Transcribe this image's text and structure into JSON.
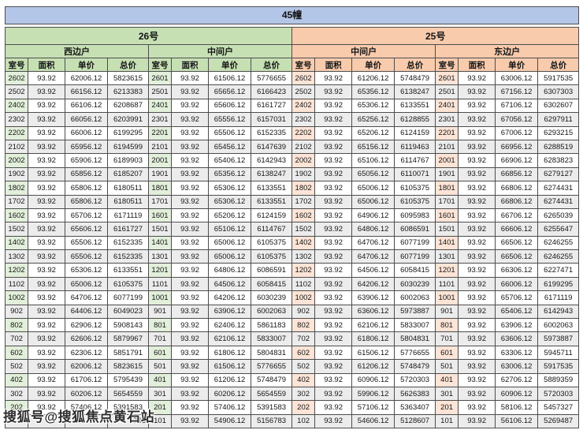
{
  "title": "45幢",
  "watermark": "搜狐号@搜狐焦点黄石站",
  "buildings": [
    {
      "label": "26号"
    },
    {
      "label": "25号"
    }
  ],
  "groups": [
    {
      "building": "26号",
      "unit_type": "西边户",
      "theme": "green"
    },
    {
      "building": "26号",
      "unit_type": "中间户",
      "theme": "green"
    },
    {
      "building": "25号",
      "unit_type": "中间户",
      "theme": "orange"
    },
    {
      "building": "25号",
      "unit_type": "东边户",
      "theme": "orange"
    }
  ],
  "columns": [
    "室号",
    "面积",
    "单价",
    "总价"
  ],
  "colors": {
    "title_band": "#b4c6e7",
    "green_header": "#c6e0b4",
    "green_room_tint": "#e2efda",
    "orange_header": "#f8cbad",
    "orange_room_tint": "#fce4d6",
    "stripe": "#ececec",
    "border": "#4d4d4d"
  },
  "obscured_row_index": 25,
  "rows": [
    [
      "2602",
      "93.92",
      "62006.12",
      "5823615",
      "2601",
      "93.92",
      "61506.12",
      "5776655",
      "2602",
      "93.92",
      "61206.12",
      "5748479",
      "2601",
      "93.92",
      "63006.12",
      "5917535"
    ],
    [
      "2502",
      "93.92",
      "66156.12",
      "6213383",
      "2501",
      "93.92",
      "65656.12",
      "6166423",
      "2502",
      "93.92",
      "65356.12",
      "6138247",
      "2501",
      "93.92",
      "67156.12",
      "6307303"
    ],
    [
      "2402",
      "93.92",
      "66106.12",
      "6208687",
      "2401",
      "93.92",
      "65606.12",
      "6161727",
      "2402",
      "93.92",
      "65306.12",
      "6133551",
      "2401",
      "93.92",
      "67106.12",
      "6302607"
    ],
    [
      "2302",
      "93.92",
      "66056.12",
      "6203991",
      "2301",
      "93.92",
      "65556.12",
      "6157031",
      "2302",
      "93.92",
      "65256.12",
      "6128855",
      "2301",
      "93.92",
      "67056.12",
      "6297911"
    ],
    [
      "2202",
      "93.92",
      "66006.12",
      "6199295",
      "2201",
      "93.92",
      "65506.12",
      "6152335",
      "2202",
      "93.92",
      "65206.12",
      "6124159",
      "2201",
      "93.92",
      "67006.12",
      "6293215"
    ],
    [
      "2102",
      "93.92",
      "65956.12",
      "6194599",
      "2101",
      "93.92",
      "65456.12",
      "6147639",
      "2102",
      "93.92",
      "65156.12",
      "6119463",
      "2101",
      "93.92",
      "66956.12",
      "6288519"
    ],
    [
      "2002",
      "93.92",
      "65906.12",
      "6189903",
      "2001",
      "93.92",
      "65406.12",
      "6142943",
      "2002",
      "93.92",
      "65106.12",
      "6114767",
      "2001",
      "93.92",
      "66906.12",
      "6283823"
    ],
    [
      "1902",
      "93.92",
      "65856.12",
      "6185207",
      "1901",
      "93.92",
      "65356.12",
      "6138247",
      "1902",
      "93.92",
      "65056.12",
      "6110071",
      "1901",
      "93.92",
      "66856.12",
      "6279127"
    ],
    [
      "1802",
      "93.92",
      "65806.12",
      "6180511",
      "1801",
      "93.92",
      "65306.12",
      "6133551",
      "1802",
      "93.92",
      "65006.12",
      "6105375",
      "1801",
      "93.92",
      "66806.12",
      "6274431"
    ],
    [
      "1702",
      "93.92",
      "65806.12",
      "6180511",
      "1701",
      "93.92",
      "65306.12",
      "6133551",
      "1702",
      "93.92",
      "65006.12",
      "6105375",
      "1701",
      "93.92",
      "66806.12",
      "6274431"
    ],
    [
      "1602",
      "93.92",
      "65706.12",
      "6171119",
      "1601",
      "93.92",
      "65206.12",
      "6124159",
      "1602",
      "93.92",
      "64906.12",
      "6095983",
      "1601",
      "93.92",
      "66706.12",
      "6265039"
    ],
    [
      "1502",
      "93.92",
      "65606.12",
      "6161727",
      "1501",
      "93.92",
      "65106.12",
      "6114767",
      "1502",
      "93.92",
      "64806.12",
      "6086591",
      "1501",
      "93.92",
      "66606.12",
      "6255647"
    ],
    [
      "1402",
      "93.92",
      "65506.12",
      "6152335",
      "1401",
      "93.92",
      "65006.12",
      "6105375",
      "1402",
      "93.92",
      "64706.12",
      "6077199",
      "1401",
      "93.92",
      "66506.12",
      "6246255"
    ],
    [
      "1302",
      "93.92",
      "65506.12",
      "6152335",
      "1301",
      "93.92",
      "65006.12",
      "6105375",
      "1302",
      "93.92",
      "64706.12",
      "6077199",
      "1301",
      "93.92",
      "66506.12",
      "6246255"
    ],
    [
      "1202",
      "93.92",
      "65306.12",
      "6133551",
      "1201",
      "93.92",
      "64806.12",
      "6086591",
      "1202",
      "93.92",
      "64506.12",
      "6058415",
      "1201",
      "93.92",
      "66306.12",
      "6227471"
    ],
    [
      "1102",
      "93.92",
      "65006.12",
      "6105375",
      "1101",
      "93.92",
      "64506.12",
      "6058415",
      "1102",
      "93.92",
      "64206.12",
      "6030239",
      "1101",
      "93.92",
      "66006.12",
      "6199295"
    ],
    [
      "1002",
      "93.92",
      "64706.12",
      "6077199",
      "1001",
      "93.92",
      "64206.12",
      "6030239",
      "1002",
      "93.92",
      "63906.12",
      "6002063",
      "1001",
      "93.92",
      "65706.12",
      "6171119"
    ],
    [
      "902",
      "93.92",
      "64406.12",
      "6049023",
      "901",
      "93.92",
      "63906.12",
      "6002063",
      "902",
      "93.92",
      "63606.12",
      "5973887",
      "901",
      "93.92",
      "65406.12",
      "6142943"
    ],
    [
      "802",
      "93.92",
      "62906.12",
      "5908143",
      "801",
      "93.92",
      "62406.12",
      "5861183",
      "802",
      "93.92",
      "62106.12",
      "5833007",
      "801",
      "93.92",
      "63906.12",
      "6002063"
    ],
    [
      "702",
      "93.92",
      "62606.12",
      "5879967",
      "701",
      "93.92",
      "62106.12",
      "5833007",
      "702",
      "93.92",
      "61806.12",
      "5804831",
      "701",
      "93.92",
      "63606.12",
      "5973887"
    ],
    [
      "602",
      "93.92",
      "62306.12",
      "5851791",
      "601",
      "93.92",
      "61806.12",
      "5804831",
      "602",
      "93.92",
      "61506.12",
      "5776655",
      "601",
      "93.92",
      "63306.12",
      "5945711"
    ],
    [
      "502",
      "93.92",
      "62006.12",
      "5823615",
      "501",
      "93.92",
      "61506.12",
      "5776655",
      "502",
      "93.92",
      "61206.12",
      "5748479",
      "501",
      "93.92",
      "63006.12",
      "5917535"
    ],
    [
      "402",
      "93.92",
      "61706.12",
      "5795439",
      "401",
      "93.92",
      "61206.12",
      "5748479",
      "402",
      "93.92",
      "60906.12",
      "5720303",
      "401",
      "93.92",
      "62706.12",
      "5889359"
    ],
    [
      "302",
      "93.92",
      "60206.12",
      "5654559",
      "301",
      "93.92",
      "60206.12",
      "5654559",
      "302",
      "93.92",
      "59906.12",
      "5626383",
      "301",
      "93.92",
      "60906.12",
      "5720303"
    ],
    [
      "202",
      "93.92",
      "57406.12",
      "5391583",
      "201",
      "93.92",
      "57406.12",
      "5391583",
      "202",
      "93.92",
      "57106.12",
      "5363407",
      "201",
      "93.92",
      "58106.12",
      "5457327"
    ],
    [
      "",
      "",
      "",
      "743",
      "101",
      "93.92",
      "54906.12",
      "5156783",
      "102",
      "93.92",
      "54606.12",
      "5128607",
      "101",
      "93.92",
      "56106.12",
      "5269487"
    ]
  ]
}
